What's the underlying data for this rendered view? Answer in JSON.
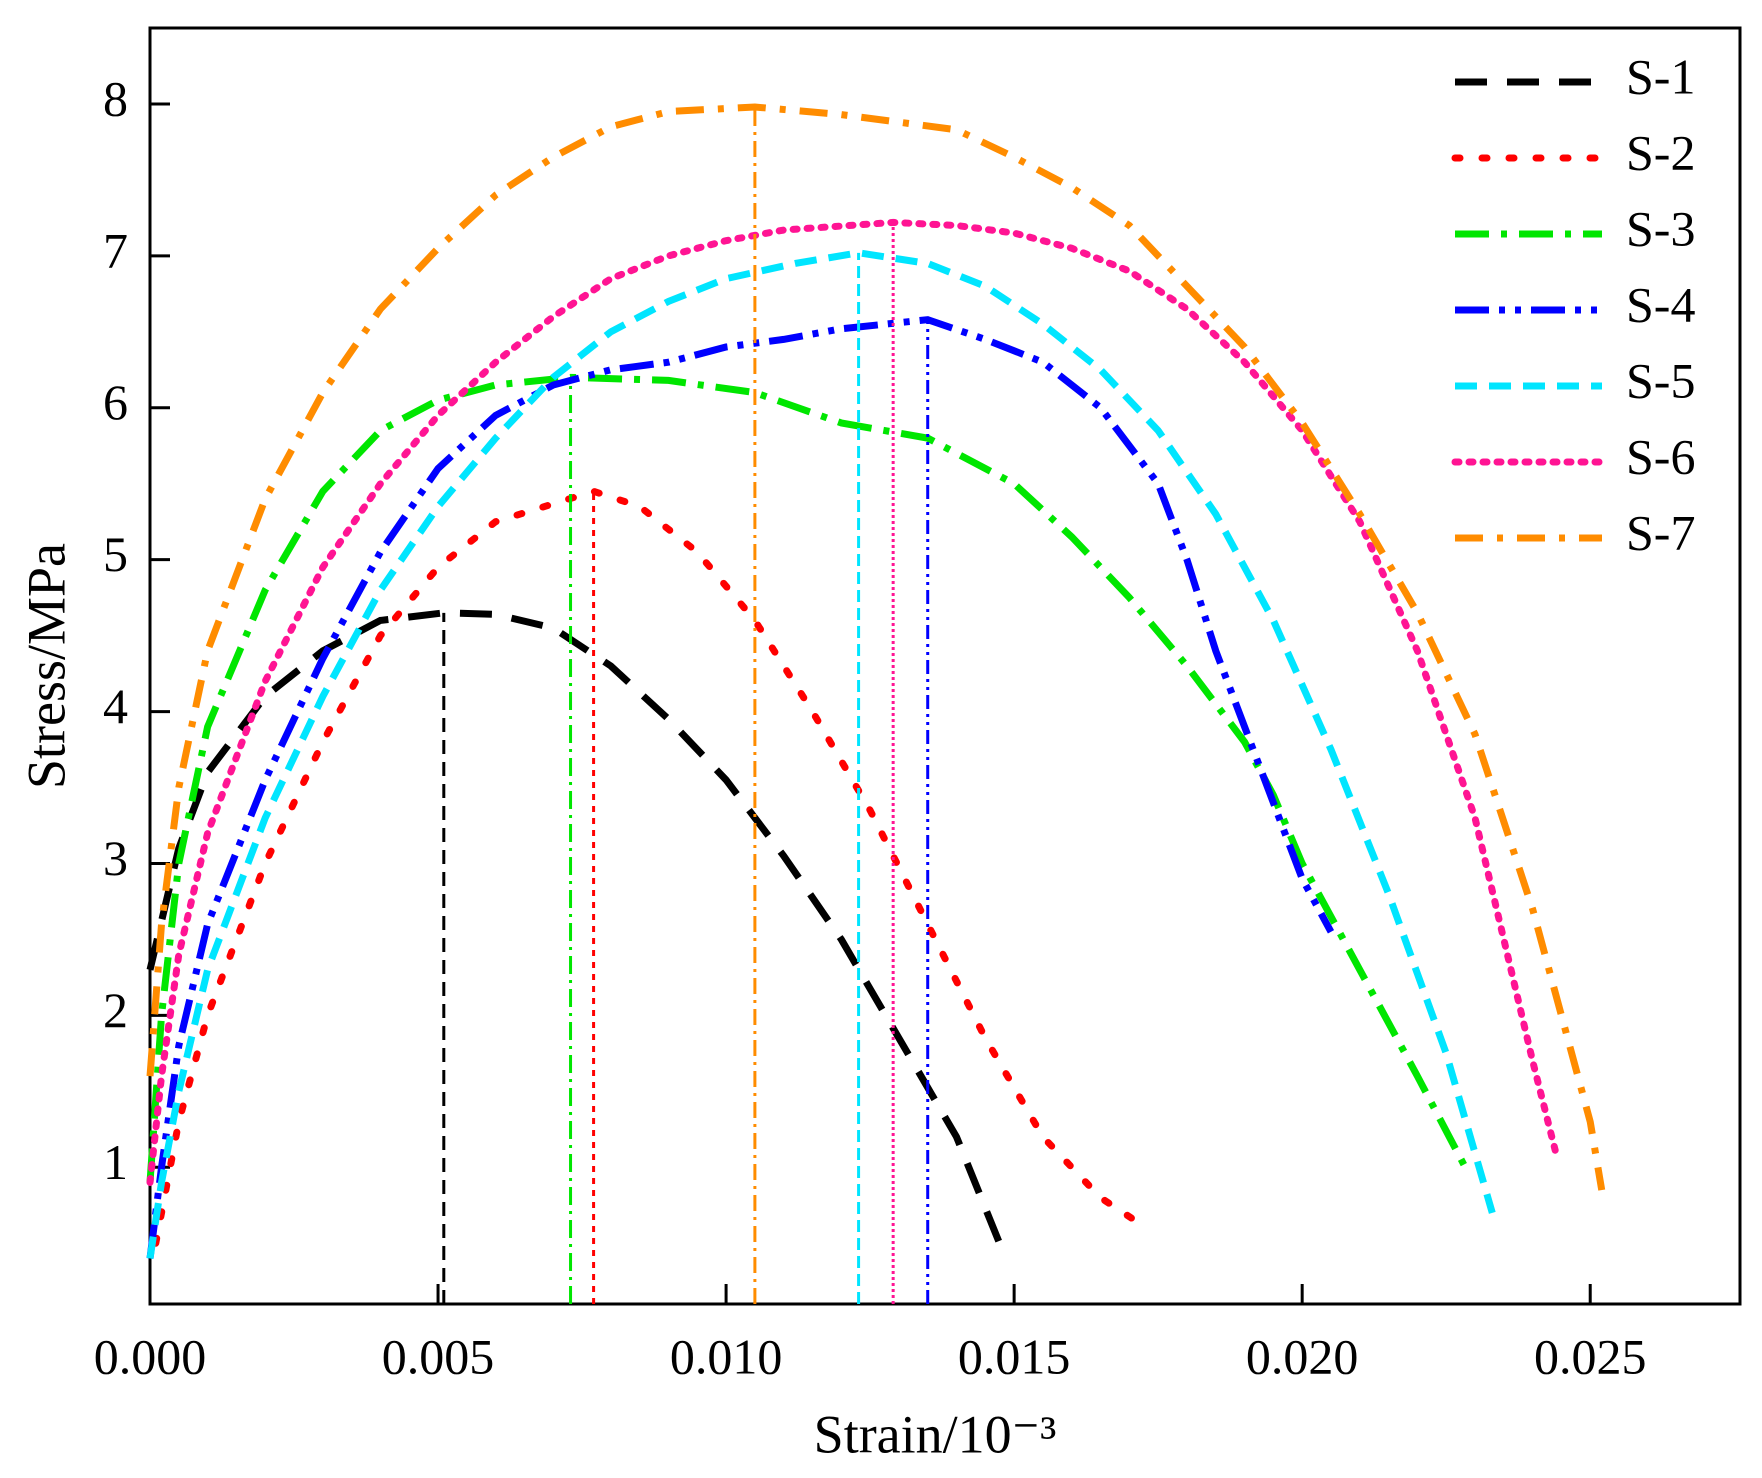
{
  "chart_data": {
    "type": "line",
    "x_label": "Strain/10⁻³",
    "y_label": "Stress/MPa",
    "xlim": [
      0,
      0.0276
    ],
    "ylim": [
      0.1,
      8.5
    ],
    "xticks": [
      {
        "value": 0,
        "label": "0.000"
      },
      {
        "value": 0.005,
        "label": "0.005"
      },
      {
        "value": 0.01,
        "label": "0.010"
      },
      {
        "value": 0.015,
        "label": "0.015"
      },
      {
        "value": 0.02,
        "label": "0.020"
      },
      {
        "value": 0.025,
        "label": "0.025"
      }
    ],
    "yticks": [
      1,
      2,
      3,
      4,
      5,
      6,
      7,
      8
    ],
    "legend": "upper right",
    "series": [
      {
        "name": "S-1",
        "color": "#000000",
        "x": [
          0,
          0.0005,
          0.001,
          0.002,
          0.003,
          0.004,
          0.0051,
          0.006,
          0.007,
          0.008,
          0.009,
          0.01,
          0.011,
          0.012,
          0.013,
          0.014,
          0.0148
        ],
        "values": [
          2.3,
          3.1,
          3.6,
          4.1,
          4.4,
          4.6,
          4.65,
          4.64,
          4.55,
          4.3,
          3.95,
          3.55,
          3.05,
          2.5,
          1.85,
          1.2,
          0.45
        ]
      },
      {
        "name": "S-2",
        "color": "#ff0000",
        "x": [
          0.0001,
          0.0005,
          0.001,
          0.002,
          0.003,
          0.004,
          0.005,
          0.006,
          0.0077,
          0.0085,
          0.0095,
          0.0105,
          0.0115,
          0.0125,
          0.0135,
          0.0145,
          0.0155,
          0.0165,
          0.0171
        ],
        "values": [
          0.5,
          1.3,
          2.0,
          3.0,
          3.8,
          4.5,
          4.95,
          5.25,
          5.45,
          5.35,
          5.05,
          4.6,
          4.0,
          3.35,
          2.6,
          1.85,
          1.2,
          0.8,
          0.65
        ]
      },
      {
        "name": "S-3",
        "color": "#00e600",
        "x": [
          0,
          0.0002,
          0.0005,
          0.001,
          0.002,
          0.003,
          0.004,
          0.005,
          0.006,
          0.0073,
          0.009,
          0.0105,
          0.012,
          0.0135,
          0.015,
          0.016,
          0.017,
          0.018,
          0.019,
          0.0195,
          0.02,
          0.021,
          0.022,
          0.0229
        ],
        "values": [
          0.9,
          2.0,
          3.0,
          3.9,
          4.8,
          5.45,
          5.85,
          6.05,
          6.15,
          6.2,
          6.18,
          6.1,
          5.9,
          5.8,
          5.5,
          5.15,
          4.75,
          4.3,
          3.8,
          3.45,
          3.0,
          2.3,
          1.6,
          0.95
        ]
      },
      {
        "name": "S-4",
        "color": "#0000ff",
        "x": [
          0,
          0.0002,
          0.0005,
          0.001,
          0.002,
          0.003,
          0.004,
          0.005,
          0.006,
          0.007,
          0.008,
          0.009,
          0.01,
          0.011,
          0.012,
          0.0135,
          0.0145,
          0.0155,
          0.0165,
          0.0175,
          0.018,
          0.0185,
          0.019,
          0.0195,
          0.02,
          0.0205
        ],
        "values": [
          0.4,
          1.0,
          1.8,
          2.6,
          3.55,
          4.35,
          5.05,
          5.6,
          5.95,
          6.15,
          6.25,
          6.3,
          6.4,
          6.45,
          6.52,
          6.58,
          6.45,
          6.3,
          6.0,
          5.5,
          5.0,
          4.4,
          3.9,
          3.4,
          2.9,
          2.55
        ]
      },
      {
        "name": "S-5",
        "color": "#00e5ff",
        "x": [
          0,
          0.0002,
          0.0005,
          0.001,
          0.002,
          0.003,
          0.004,
          0.005,
          0.006,
          0.007,
          0.008,
          0.009,
          0.01,
          0.0112,
          0.0123,
          0.0135,
          0.0145,
          0.0155,
          0.0165,
          0.0175,
          0.0185,
          0.0195,
          0.0205,
          0.0215,
          0.0225,
          0.0233
        ],
        "values": [
          0.4,
          0.9,
          1.5,
          2.3,
          3.3,
          4.1,
          4.8,
          5.35,
          5.8,
          6.2,
          6.5,
          6.7,
          6.85,
          6.95,
          7.02,
          6.95,
          6.8,
          6.55,
          6.25,
          5.85,
          5.3,
          4.6,
          3.75,
          2.8,
          1.75,
          0.7
        ]
      },
      {
        "name": "S-6",
        "color": "#ff1493",
        "x": [
          0,
          0.0002,
          0.0005,
          0.001,
          0.002,
          0.003,
          0.004,
          0.005,
          0.006,
          0.007,
          0.008,
          0.009,
          0.01,
          0.011,
          0.0129,
          0.014,
          0.015,
          0.016,
          0.017,
          0.018,
          0.019,
          0.02,
          0.021,
          0.022,
          0.023,
          0.0235,
          0.024,
          0.0244
        ],
        "values": [
          0.9,
          1.6,
          2.4,
          3.2,
          4.2,
          4.95,
          5.5,
          5.95,
          6.3,
          6.6,
          6.85,
          7.0,
          7.1,
          7.17,
          7.22,
          7.2,
          7.15,
          7.05,
          6.9,
          6.65,
          6.3,
          5.85,
          5.25,
          4.4,
          3.3,
          2.5,
          1.7,
          1.1
        ]
      },
      {
        "name": "S-7",
        "color": "#ff8c00",
        "x": [
          0,
          0.0002,
          0.0005,
          0.001,
          0.002,
          0.003,
          0.004,
          0.005,
          0.006,
          0.007,
          0.008,
          0.009,
          0.0105,
          0.012,
          0.013,
          0.014,
          0.015,
          0.016,
          0.017,
          0.018,
          0.019,
          0.02,
          0.021,
          0.022,
          0.023,
          0.024,
          0.0245,
          0.025,
          0.0252
        ],
        "values": [
          1.6,
          2.6,
          3.5,
          4.4,
          5.4,
          6.1,
          6.65,
          7.05,
          7.4,
          7.65,
          7.85,
          7.95,
          7.98,
          7.93,
          7.88,
          7.83,
          7.65,
          7.45,
          7.2,
          6.8,
          6.4,
          5.9,
          5.3,
          4.65,
          3.85,
          2.7,
          2.0,
          1.3,
          0.85
        ]
      }
    ]
  }
}
